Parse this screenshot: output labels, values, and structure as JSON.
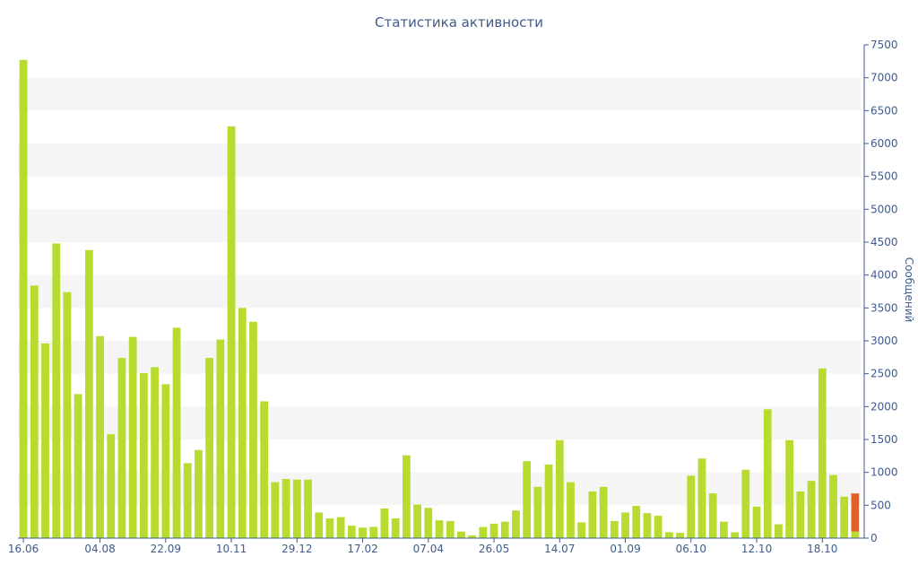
{
  "chart_data": {
    "type": "bar",
    "title": "Статистика активности",
    "xlabel": "",
    "ylabel": "Сообщений",
    "ylim": [
      0,
      7500
    ],
    "y_ticks": [
      0,
      500,
      1000,
      1500,
      2000,
      2500,
      3000,
      3500,
      4000,
      4500,
      5000,
      5500,
      6000,
      6500,
      7000,
      7500
    ],
    "y_axis_side": "right",
    "grid": "alternating horizontal bands",
    "x_tick_labels": [
      {
        "label": "16.06",
        "index": 0
      },
      {
        "label": "04.08",
        "index": 7
      },
      {
        "label": "22.09",
        "index": 13
      },
      {
        "label": "10.11",
        "index": 19
      },
      {
        "label": "29.12",
        "index": 25
      },
      {
        "label": "17.02",
        "index": 31
      },
      {
        "label": "07.04",
        "index": 37
      },
      {
        "label": "26.05",
        "index": 43
      },
      {
        "label": "14.07",
        "index": 49
      },
      {
        "label": "01.09",
        "index": 55
      },
      {
        "label": "06.10",
        "index": 61
      },
      {
        "label": "12.10",
        "index": 67
      },
      {
        "label": "18.10",
        "index": 73
      }
    ],
    "series": [
      {
        "color": "#b7db2f",
        "values": [
          7270,
          3840,
          2960,
          4480,
          3740,
          2190,
          4380,
          3070,
          1580,
          2740,
          3060,
          2510,
          2600,
          2340,
          3200,
          1140,
          1340,
          2740,
          3020,
          6260,
          3500,
          3290,
          2080,
          850,
          900,
          890,
          890,
          390,
          300,
          320,
          190,
          160,
          170,
          450,
          300,
          1260,
          510,
          460,
          270,
          260,
          100,
          40,
          170,
          220,
          250,
          420,
          1170,
          780,
          1120,
          1490,
          850,
          240,
          710,
          780,
          260,
          390,
          490,
          380,
          340,
          90,
          80,
          950,
          1210,
          680,
          250,
          90,
          1040,
          480,
          1960,
          210,
          1490,
          710,
          870,
          2580,
          960,
          630,
          100
        ]
      },
      {
        "color": "#e0622a",
        "stacked_on_last_bar": true,
        "values": [
          580
        ]
      }
    ]
  }
}
